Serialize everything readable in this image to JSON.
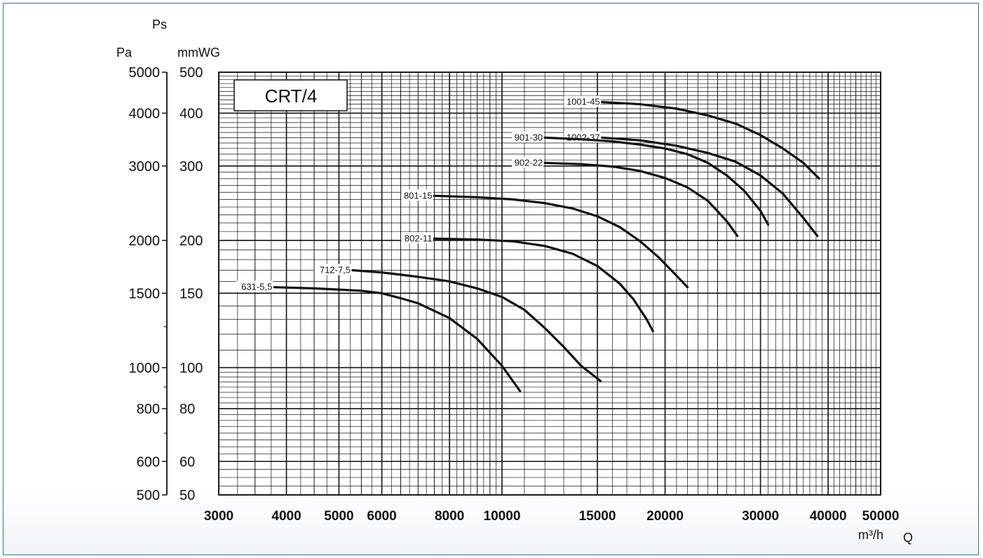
{
  "chart_data": {
    "type": "line",
    "title": "CRT/4",
    "x_axis": {
      "label": "Q",
      "unit": "m³/h",
      "scale": "log",
      "range": [
        3000,
        50000
      ],
      "tick_labels": [
        "3000",
        "4000",
        "5000",
        "6000",
        "8000",
        "10000",
        "15000",
        "20000",
        "30000",
        "40000",
        "50000"
      ]
    },
    "y_axis_left": {
      "label": "Ps",
      "unit": "Pa",
      "scale": "log",
      "range": [
        500,
        5000
      ],
      "tick_labels": [
        "5000",
        "4000",
        "3000",
        "2000",
        "1500",
        "1000",
        "800",
        "600",
        "500"
      ]
    },
    "y_axis_right": {
      "label": "Ps",
      "unit": "mmWG",
      "scale": "log",
      "range": [
        50,
        500
      ],
      "tick_labels": [
        "500",
        "400",
        "300",
        "200",
        "150",
        "100",
        "80",
        "60",
        "50"
      ]
    },
    "grid": true,
    "series": [
      {
        "name": "1001-45",
        "x": [
          15300,
          18000,
          21000,
          24000,
          27000,
          30000,
          33000,
          36000,
          38500
        ],
        "y": [
          425,
          420,
          410,
          395,
          378,
          355,
          330,
          305,
          280
        ]
      },
      {
        "name": "1002-37",
        "x": [
          15300,
          18000,
          21000,
          24000,
          27000,
          30000,
          33000,
          36000,
          38200
        ],
        "y": [
          350,
          345,
          335,
          322,
          307,
          285,
          258,
          226,
          205
        ]
      },
      {
        "name": "901-30",
        "x": [
          12000,
          14000,
          16000,
          18000,
          20000,
          22000,
          24000,
          26000,
          28000,
          30000,
          31000
        ],
        "y": [
          350,
          347,
          343,
          337,
          330,
          320,
          305,
          285,
          262,
          235,
          218
        ]
      },
      {
        "name": "902-22",
        "x": [
          12000,
          14000,
          16000,
          18000,
          20000,
          22000,
          24000,
          26000,
          27200
        ],
        "y": [
          305,
          303,
          299,
          292,
          281,
          267,
          248,
          222,
          205
        ]
      },
      {
        "name": "801-15",
        "x": [
          7500,
          9000,
          10500,
          12000,
          13500,
          15000,
          16500,
          18000,
          19500,
          21000,
          22000
        ],
        "y": [
          255,
          253,
          250,
          245,
          238,
          228,
          215,
          199,
          182,
          165,
          155
        ]
      },
      {
        "name": "802-11",
        "x": [
          7500,
          9000,
          10500,
          12000,
          13500,
          15000,
          16500,
          17500,
          18500,
          19000
        ],
        "y": [
          202,
          201,
          199,
          194,
          186,
          174,
          158,
          145,
          130,
          122
        ]
      },
      {
        "name": "712-7,5",
        "x": [
          5300,
          6000,
          7000,
          8000,
          9000,
          10000,
          11000,
          12000,
          13000,
          14000,
          15200
        ],
        "y": [
          170,
          168,
          164,
          160,
          154,
          147,
          137,
          124,
          112,
          101,
          93
        ]
      },
      {
        "name": "631-5,5",
        "x": [
          3800,
          4500,
          5000,
          5500,
          6000,
          6500,
          7000,
          8000,
          9000,
          10000,
          10800
        ],
        "y": [
          155,
          154,
          153,
          152,
          150,
          146,
          142,
          131,
          117,
          101,
          88
        ]
      }
    ]
  }
}
